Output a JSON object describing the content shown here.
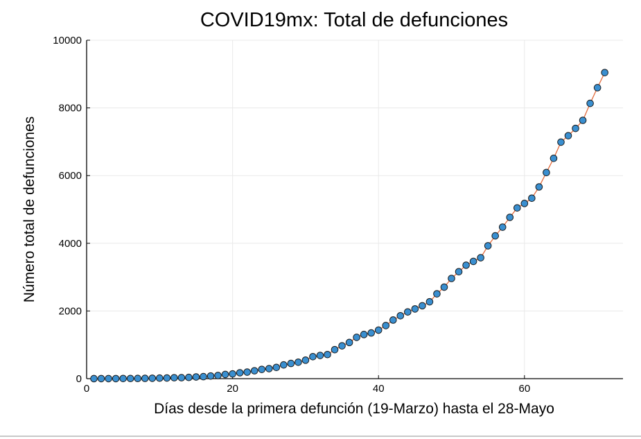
{
  "chart_data": {
    "type": "scatter",
    "title": "COVID19mx: Total de defunciones",
    "xlabel": "Días desde la primera defunción (19-Marzo) hasta el 28-Mayo",
    "ylabel": "Número total de defunciones",
    "xlim": [
      0,
      73.5
    ],
    "ylim": [
      0,
      10000
    ],
    "xticks": [
      0,
      20,
      40,
      60
    ],
    "yticks": [
      0,
      2000,
      4000,
      6000,
      8000,
      10000
    ],
    "grid": true,
    "legend": "none",
    "colors": {
      "marker_fill": "#3a8fd0",
      "marker_stroke": "#1a1a1a",
      "line": "#e26a3b"
    },
    "series": [
      {
        "x": [
          1,
          2,
          3,
          4,
          5,
          6,
          7,
          8,
          9,
          10,
          11,
          12,
          13,
          14,
          15,
          16,
          17,
          18,
          19,
          20,
          21,
          22,
          23,
          24,
          25,
          26,
          27,
          28,
          29,
          30,
          31,
          32,
          33,
          34,
          35,
          36,
          37,
          38,
          39,
          40,
          41,
          42,
          43,
          44,
          45,
          46,
          47,
          48,
          49,
          50,
          51,
          52,
          53,
          54,
          55,
          56,
          57,
          58,
          59,
          60,
          61,
          62,
          63,
          64,
          65,
          66,
          67,
          68,
          69,
          70,
          71
        ],
        "y": [
          1,
          2,
          2,
          2,
          4,
          5,
          6,
          8,
          12,
          16,
          20,
          28,
          29,
          37,
          50,
          60,
          79,
          94,
          125,
          141,
          174,
          194,
          233,
          273,
          296,
          332,
          406,
          449,
          486,
          546,
          650,
          686,
          712,
          857,
          970,
          1069,
          1221,
          1305,
          1351,
          1434,
          1569,
          1732,
          1859,
          1972,
          2061,
          2154,
          2271,
          2507,
          2704,
          2961,
          3160,
          3353,
          3465,
          3573,
          3926,
          4220,
          4477,
          4767,
          5045,
          5177,
          5332,
          5666,
          6090,
          6510,
          6989,
          7179,
          7394,
          7633,
          8134,
          8597,
          9044
        ]
      }
    ]
  }
}
